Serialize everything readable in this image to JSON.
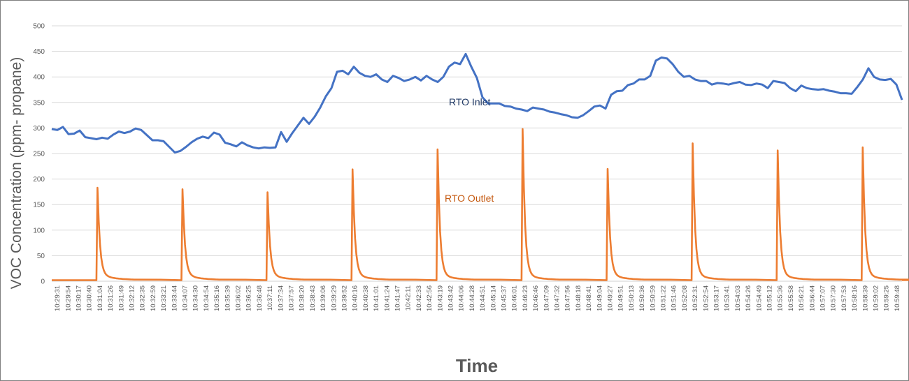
{
  "chart_data": {
    "type": "line",
    "title": "",
    "xlabel": "Time",
    "ylabel": "VOC Concentration (ppm- propane)",
    "ylim": [
      0,
      500
    ],
    "yticks": [
      0,
      50,
      100,
      150,
      200,
      250,
      300,
      350,
      400,
      450,
      500
    ],
    "grid": true,
    "legend": "none (inline annotations)",
    "categories": [
      "10:29:31",
      "10:29:54",
      "10:30:17",
      "10:30:40",
      "10:31:04",
      "10:31:26",
      "10:31:49",
      "10:32:12",
      "10:32:35",
      "10:32:59",
      "10:33:21",
      "10:33:44",
      "10:34:07",
      "10:34:30",
      "10:34:54",
      "10:35:16",
      "10:35:39",
      "10:36:02",
      "10:36:25",
      "10:36:48",
      "10:37:11",
      "10:37:34",
      "10:37:57",
      "10:38:20",
      "10:38:43",
      "10:39:06",
      "10:39:29",
      "10:39:52",
      "10:40:16",
      "10:40:38",
      "10:41:01",
      "10:41:24",
      "10:41:47",
      "10:42:11",
      "10:42:33",
      "10:42:56",
      "10:43:19",
      "10:43:42",
      "10:44:06",
      "10:44:28",
      "10:44:51",
      "10:45:14",
      "10:45:37",
      "10:46:01",
      "10:46:23",
      "10:46:46",
      "10:47:09",
      "10:47:32",
      "10:47:56",
      "10:48:18",
      "10:48:41",
      "10:49:04",
      "10:49:27",
      "10:49:51",
      "10:50:13",
      "10:50:36",
      "10:50:59",
      "10:51:22",
      "10:51:46",
      "10:52:08",
      "10:52:31",
      "10:52:54",
      "10:53:17",
      "10:53:41",
      "10:54:03",
      "10:54:26",
      "10:54:49",
      "10:55:12",
      "10:55:36",
      "10:55:58",
      "10:56:21",
      "10:56:44",
      "10:57:07",
      "10:57:30",
      "10:57:53",
      "10:58:16",
      "10:58:39",
      "10:59:02",
      "10:59:25",
      "10:59:48"
    ],
    "series": [
      {
        "name": "RTO Inlet",
        "color": "#4472C4",
        "values": [
          298,
          296,
          302,
          288,
          289,
          295,
          282,
          280,
          278,
          281,
          279,
          287,
          293,
          290,
          293,
          299,
          296,
          286,
          276,
          276,
          274,
          263,
          252,
          255,
          263,
          272,
          279,
          283,
          280,
          291,
          287,
          271,
          268,
          264,
          272,
          266,
          262,
          260,
          262,
          261,
          262,
          292,
          273,
          290,
          305,
          320,
          308,
          322,
          340,
          362,
          378,
          410,
          412,
          405,
          420,
          408,
          402,
          400,
          405,
          395,
          390,
          402,
          398,
          392,
          395,
          400,
          393,
          402,
          395,
          390,
          400,
          420,
          428,
          425,
          445,
          420,
          398,
          360,
          348,
          348,
          348,
          343,
          342,
          338,
          336,
          333,
          340,
          338,
          336,
          332,
          330,
          327,
          325,
          321,
          320,
          325,
          333,
          342,
          344,
          338,
          365,
          372,
          373,
          384,
          387,
          395,
          395,
          402,
          432,
          438,
          436,
          425,
          410,
          400,
          402,
          395,
          392,
          392,
          385,
          388,
          387,
          385,
          388,
          390,
          385,
          384,
          387,
          385,
          378,
          392,
          390,
          388,
          378,
          372,
          383,
          378,
          376,
          375,
          376,
          373,
          371,
          368,
          368,
          367,
          380,
          395,
          417,
          400,
          395,
          394,
          396,
          385,
          355
        ]
      },
      {
        "name": "RTO Outlet",
        "color": "#ED7D31",
        "peaks": [
          {
            "time": "10:31:04",
            "value": 183
          },
          {
            "time": "10:34:07",
            "value": 180
          },
          {
            "time": "10:37:11",
            "value": 174
          },
          {
            "time": "10:40:16",
            "value": 219
          },
          {
            "time": "10:43:19",
            "value": 258
          },
          {
            "time": "10:46:23",
            "value": 298
          },
          {
            "time": "10:49:27",
            "value": 220
          },
          {
            "time": "10:52:31",
            "value": 270
          },
          {
            "time": "10:55:36",
            "value": 256
          },
          {
            "time": "10:58:39",
            "value": 262
          }
        ],
        "baseline": 2
      }
    ],
    "annotations": [
      {
        "text": "RTO Inlet",
        "color": "#1F3864",
        "x_time": "10:45:14",
        "y": 350
      },
      {
        "text": "RTO Outlet",
        "color": "#C55A11",
        "x_time": "10:45:14",
        "y": 163
      }
    ]
  }
}
